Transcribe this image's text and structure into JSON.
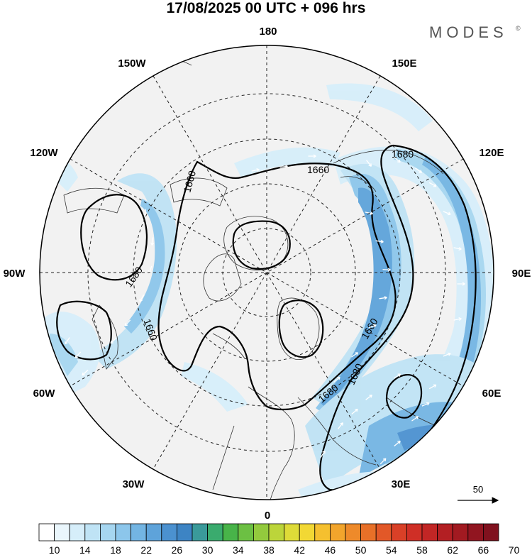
{
  "title": "17/08/2025  00 UTC  + 096 hrs",
  "brand": "MODES",
  "brand_mark": "©",
  "longitude_labels": [
    {
      "id": "180",
      "text": "180"
    },
    {
      "id": "150e",
      "text": "150E"
    },
    {
      "id": "120e",
      "text": "120E"
    },
    {
      "id": "90e",
      "text": "90E"
    },
    {
      "id": "60e",
      "text": "60E"
    },
    {
      "id": "30e",
      "text": "30E"
    },
    {
      "id": "0",
      "text": "0"
    },
    {
      "id": "30w",
      "text": "30W"
    },
    {
      "id": "60w",
      "text": "60W"
    },
    {
      "id": "90w",
      "text": "90W"
    },
    {
      "id": "120w",
      "text": "120W"
    },
    {
      "id": "150w",
      "text": "150W"
    }
  ],
  "contour_labels": [
    "1660",
    "1680",
    "1660",
    "1680",
    "1660",
    "1680",
    "1660",
    "1680"
  ],
  "vector_reference": {
    "value": "50"
  },
  "colorbar": {
    "ticks": [
      "10",
      "14",
      "18",
      "22",
      "26",
      "30",
      "34",
      "38",
      "42",
      "46",
      "50",
      "54",
      "58",
      "62",
      "66",
      "70"
    ],
    "colors": [
      "#ffffff",
      "#eaf6fc",
      "#d6eefa",
      "#bfe3f5",
      "#a6d6f0",
      "#8cc6eb",
      "#73b5e3",
      "#5ea3da",
      "#4b91d0",
      "#3d84c4",
      "#3a9a9a",
      "#3aab6e",
      "#48b449",
      "#6cc043",
      "#93ca3d",
      "#bcd53a",
      "#dedb38",
      "#f2d834",
      "#f5c02f",
      "#f2a52c",
      "#ee8a2a",
      "#e87028",
      "#e25828",
      "#d94027",
      "#cf2f26",
      "#c22625",
      "#b31f23",
      "#a21a21",
      "#911520",
      "#80111e"
    ]
  }
}
